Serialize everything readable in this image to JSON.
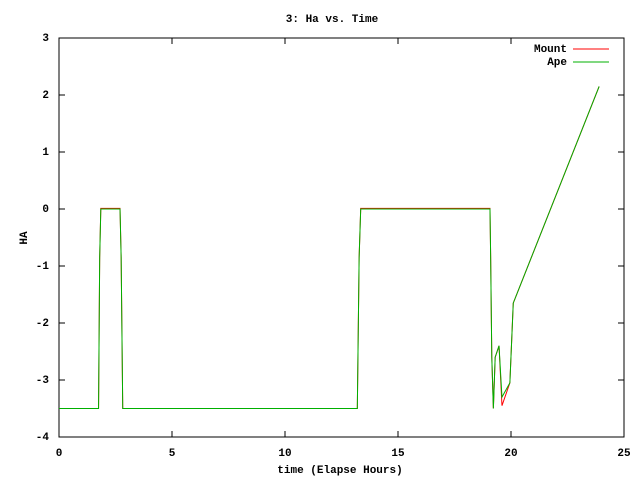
{
  "chart_data": {
    "type": "line",
    "title": "3: Ha vs. Time",
    "x_label": "time (Elapse Hours)",
    "y_label": "HA",
    "x": [
      0,
      1.75,
      1.8,
      1.85,
      2.7,
      2.75,
      2.82,
      13.2,
      13.28,
      13.35,
      19.07,
      19.1,
      19.15,
      19.22,
      19.3,
      19.47,
      19.6,
      19.95,
      20.1,
      23.9
    ],
    "series": [
      {
        "name": "Mount",
        "color": "#ff0000",
        "values": [
          -3.5,
          -3.5,
          -0.85,
          0.01,
          0.01,
          -0.85,
          -3.5,
          -3.5,
          -0.85,
          0.01,
          0.01,
          -0.85,
          -2.6,
          -3.5,
          -2.6,
          -2.4,
          -3.45,
          -3.05,
          -1.65,
          2.15
        ]
      },
      {
        "name": "Ape",
        "color": "#00b000",
        "values": [
          -3.5,
          -3.5,
          -0.85,
          0,
          0,
          -0.85,
          -3.5,
          -3.5,
          -0.85,
          0,
          0,
          -0.85,
          -2.6,
          -3.5,
          -2.6,
          -2.4,
          -3.3,
          -3.05,
          -1.65,
          2.15
        ]
      }
    ],
    "xlim": [
      0,
      25
    ],
    "xticks": [
      0,
      5,
      10,
      15,
      20,
      25
    ],
    "ylim": [
      -4,
      3
    ],
    "yticks": [
      -4,
      -3,
      -2,
      -1,
      0,
      1,
      2,
      3
    ],
    "legend": "top-right"
  }
}
